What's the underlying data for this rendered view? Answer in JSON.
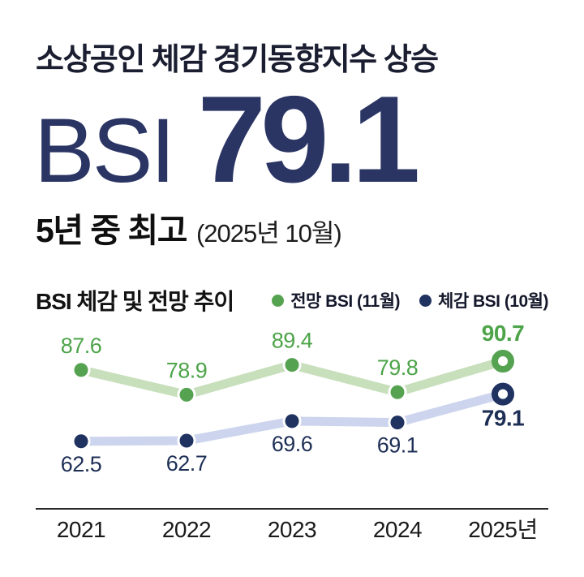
{
  "header": {
    "title": "소상공인 체감 경기동향지수 상승",
    "bsi_label": "BSI",
    "bsi_value": "79.1",
    "subtitle_bold": "5년 중 최고",
    "subtitle_note": "(2025년 10월)",
    "accent_color": "#2b3564"
  },
  "chart_data": {
    "type": "line",
    "title": "BSI 체감 및 전망 추이",
    "categories": [
      "2021",
      "2022",
      "2023",
      "2024",
      "2025년"
    ],
    "series": [
      {
        "name": "전망 BSI (11월)",
        "values": [
          87.6,
          78.9,
          89.4,
          79.8,
          90.7
        ],
        "dot_color": "#55a350",
        "line_color": "#c8dfbc",
        "label_color": "#4da449",
        "label_position": "above"
      },
      {
        "name": "체감 BSI (10월)",
        "values": [
          62.5,
          62.7,
          69.6,
          69.1,
          79.1
        ],
        "dot_color": "#1f3260",
        "line_color": "#ccd5ed",
        "label_color": "#1e2f56",
        "label_position": "below"
      }
    ],
    "highlight": "last-point-hollow",
    "legend_position": "top-right",
    "grid": false,
    "ylim": [
      55,
      100
    ],
    "axis_color": "#2b2b2b"
  }
}
